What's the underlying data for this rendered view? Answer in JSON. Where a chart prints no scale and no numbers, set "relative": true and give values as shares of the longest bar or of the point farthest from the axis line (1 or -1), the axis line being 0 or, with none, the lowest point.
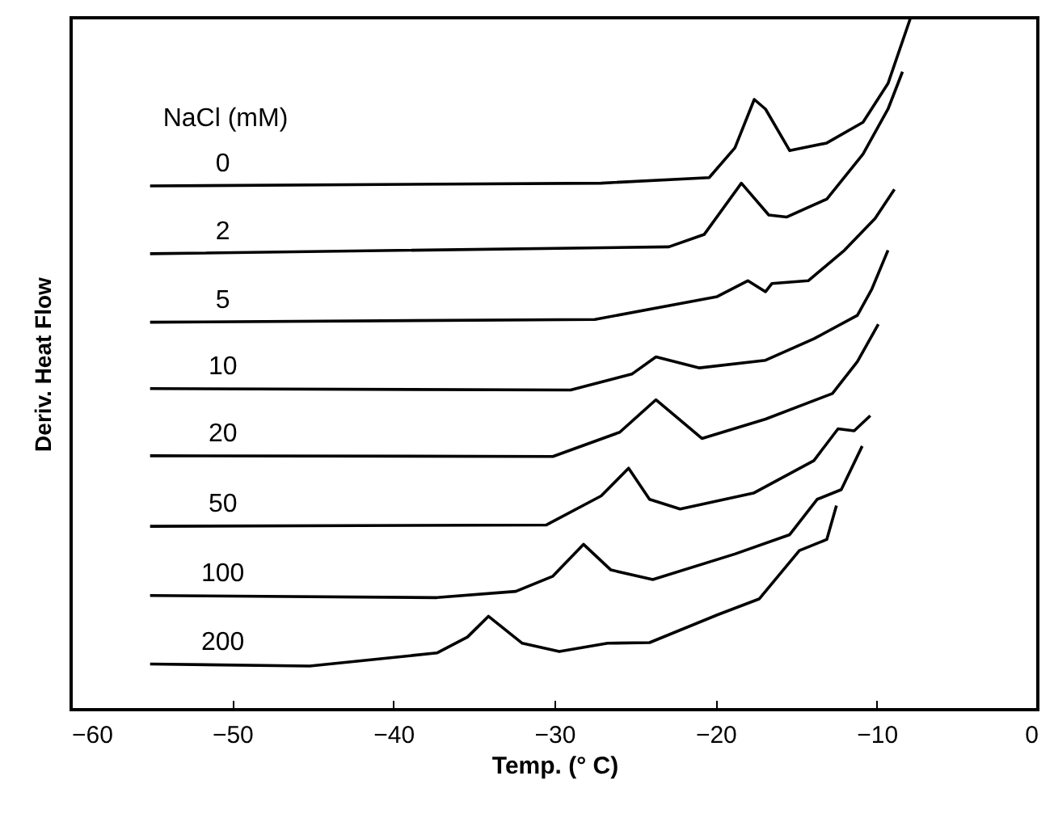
{
  "chart_data": {
    "type": "line",
    "relative": true,
    "xlabel": "Temp. (° C)",
    "ylabel": "Deriv. Heat Flow",
    "legend_title": "NaCl (mM)",
    "xlim": [
      -60,
      0
    ],
    "xticks": [
      -60,
      -50,
      -40,
      -30,
      -20,
      -10,
      0
    ],
    "tick_labels": "x",
    "grid": false,
    "line_style": "solid",
    "marker": "none",
    "series": [
      {
        "name": "0",
        "color": "#000000",
        "x": [
          -55.1,
          -27.1,
          -20.4,
          -18.8,
          -17.6,
          -16.9,
          -15.4,
          -13.1,
          -10.85,
          -9.3,
          -7.9
        ],
        "values": [
          0.757,
          0.761,
          0.769,
          0.812,
          0.882,
          0.868,
          0.808,
          0.819,
          0.849,
          0.905,
          1.0
        ]
      },
      {
        "name": "2",
        "color": "#000000",
        "x": [
          -55.1,
          -22.9,
          -20.7,
          -18.4,
          -16.7,
          -15.6,
          -13.1,
          -10.85,
          -9.3,
          -8.4
        ],
        "values": [
          0.659,
          0.669,
          0.687,
          0.761,
          0.715,
          0.712,
          0.738,
          0.803,
          0.868,
          0.922
        ]
      },
      {
        "name": "5",
        "color": "#000000",
        "x": [
          -55.1,
          -27.5,
          -19.9,
          -18.0,
          -16.9,
          -16.5,
          -14.25,
          -12.0,
          -10.1,
          -8.9
        ],
        "values": [
          0.56,
          0.564,
          0.597,
          0.62,
          0.604,
          0.616,
          0.62,
          0.664,
          0.71,
          0.752
        ]
      },
      {
        "name": "10",
        "color": "#000000",
        "x": [
          -55.1,
          -29.0,
          -25.2,
          -23.7,
          -21.0,
          -16.9,
          -13.9,
          -11.2,
          -10.3,
          -9.3
        ],
        "values": [
          0.464,
          0.462,
          0.485,
          0.51,
          0.494,
          0.505,
          0.536,
          0.57,
          0.608,
          0.664
        ]
      },
      {
        "name": "20",
        "color": "#000000",
        "x": [
          -55.1,
          -30.1,
          -25.95,
          -23.7,
          -20.85,
          -16.9,
          -12.75,
          -11.2,
          -9.9
        ],
        "values": [
          0.367,
          0.366,
          0.401,
          0.448,
          0.392,
          0.42,
          0.457,
          0.503,
          0.557
        ]
      },
      {
        "name": "50",
        "color": "#000000",
        "x": [
          -55.1,
          -30.5,
          -27.1,
          -25.4,
          -24.1,
          -22.2,
          -17.65,
          -13.9,
          -12.4,
          -11.4,
          -10.4
        ],
        "values": [
          0.265,
          0.267,
          0.309,
          0.349,
          0.304,
          0.29,
          0.313,
          0.36,
          0.406,
          0.403,
          0.425
        ]
      },
      {
        "name": "100",
        "color": "#000000",
        "x": [
          -55.1,
          -37.3,
          -32.4,
          -30.1,
          -28.2,
          -26.5,
          -23.9,
          -18.8,
          -15.4,
          -13.7,
          -12.2,
          -10.9
        ],
        "values": [
          0.165,
          0.162,
          0.171,
          0.193,
          0.239,
          0.202,
          0.188,
          0.225,
          0.253,
          0.304,
          0.318,
          0.381
        ]
      },
      {
        "name": "200",
        "color": "#000000",
        "x": [
          -55.1,
          -45.2,
          -37.3,
          -35.4,
          -34.1,
          -32.0,
          -29.7,
          -26.7,
          -24.1,
          -19.9,
          -17.3,
          -14.8,
          -13.1,
          -12.5
        ],
        "values": [
          0.066,
          0.063,
          0.082,
          0.105,
          0.135,
          0.096,
          0.084,
          0.096,
          0.097,
          0.137,
          0.16,
          0.23,
          0.246,
          0.295
        ]
      }
    ]
  }
}
